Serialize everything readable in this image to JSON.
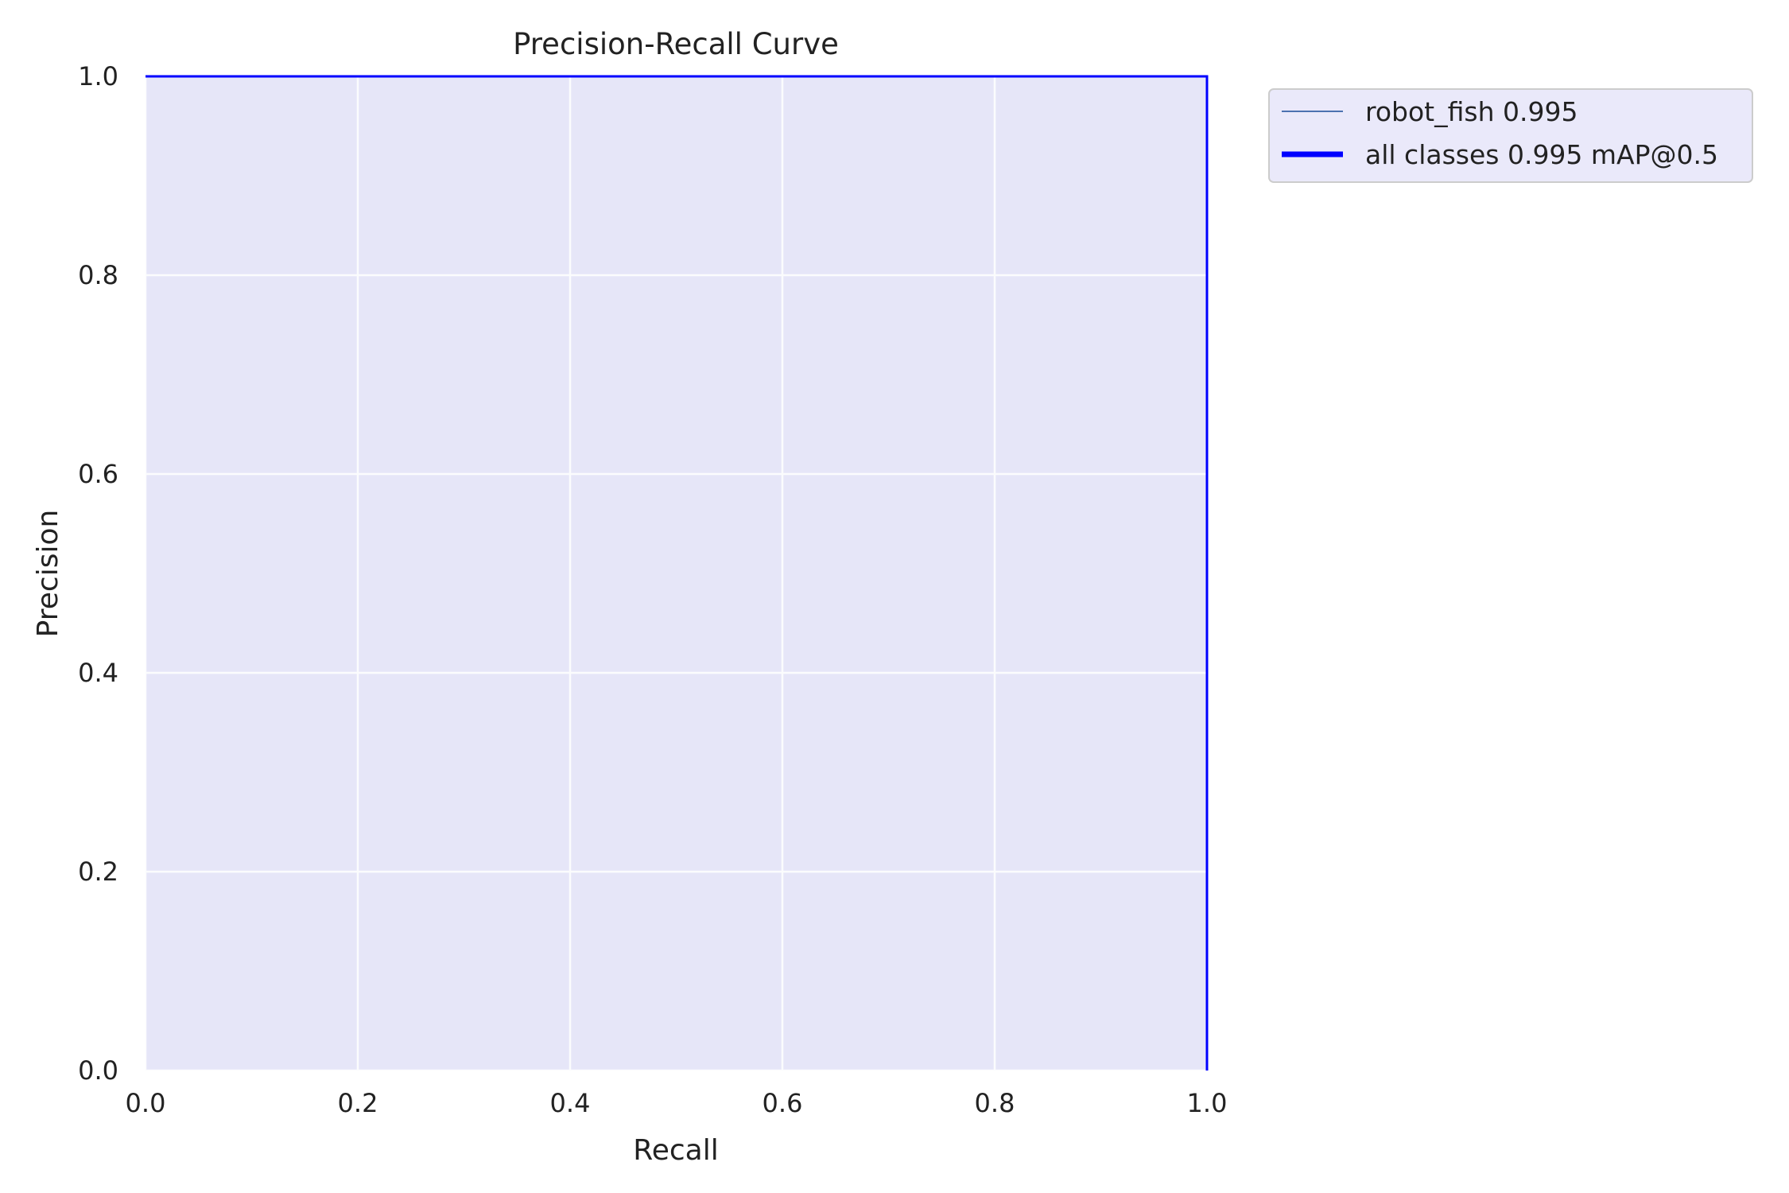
{
  "chart_data": {
    "type": "line",
    "title": "Precision-Recall Curve",
    "xlabel": "Recall",
    "ylabel": "Precision",
    "xlim": [
      0,
      1
    ],
    "ylim": [
      0,
      1
    ],
    "xticks": [
      "0.0",
      "0.2",
      "0.4",
      "0.6",
      "0.8",
      "1.0"
    ],
    "yticks": [
      "0.0",
      "0.2",
      "0.4",
      "0.6",
      "0.8",
      "1.0"
    ],
    "grid": true,
    "legend_position": "outside-top-right",
    "plot_background": "#eae9fa",
    "series": [
      {
        "name": "robot_fish 0.995",
        "color": "#4c72b0",
        "x": [
          0,
          1,
          1
        ],
        "y": [
          1,
          1,
          0
        ],
        "filled": true
      },
      {
        "name": "all classes 0.995 mAP@0.5",
        "color": "#0000ff",
        "x": [
          0,
          1,
          1
        ],
        "y": [
          1,
          1,
          0
        ],
        "filled": false
      }
    ]
  }
}
